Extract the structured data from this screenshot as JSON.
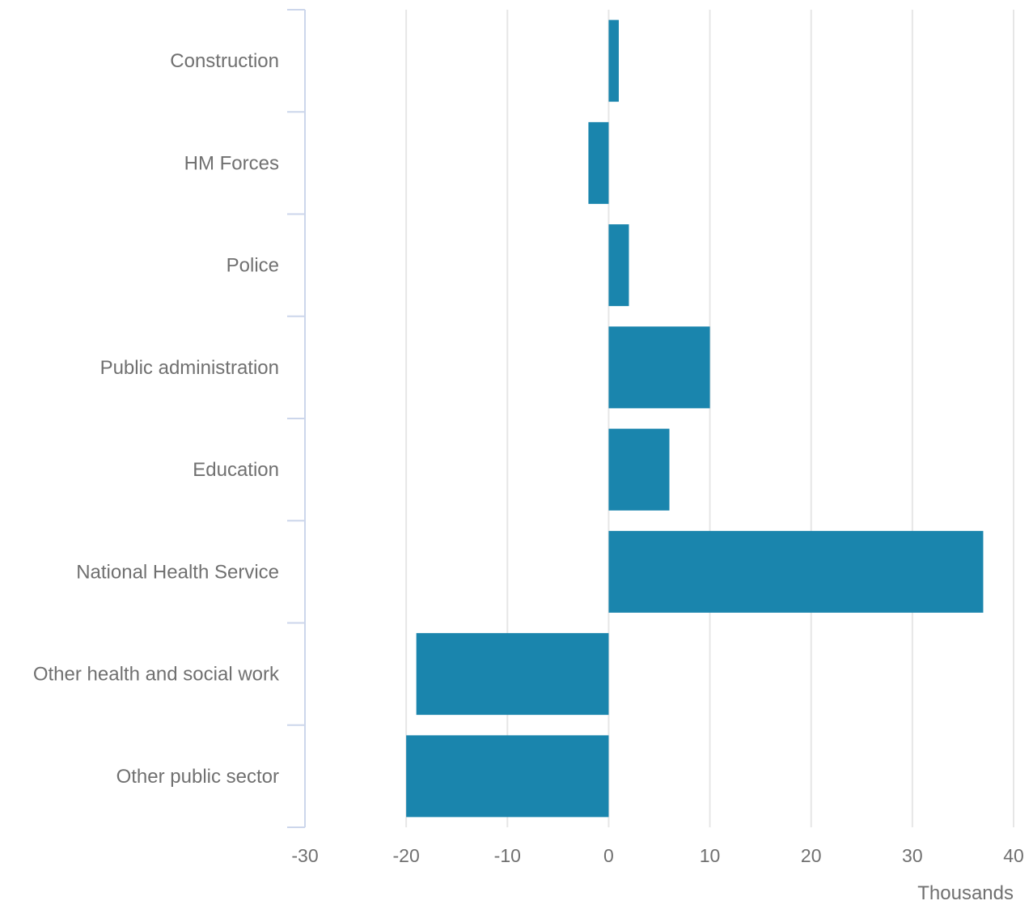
{
  "chart_data": {
    "type": "bar",
    "orientation": "horizontal",
    "categories": [
      "Construction",
      "HM Forces",
      "Police",
      "Public administration",
      "Education",
      "National Health Service",
      "Other health and social work",
      "Other public sector"
    ],
    "values": [
      1,
      -2,
      2,
      10,
      6,
      37,
      -19,
      -20
    ],
    "xlim": [
      -30,
      40
    ],
    "xticks": [
      -30,
      -20,
      -10,
      0,
      10,
      20,
      30,
      40
    ],
    "xunit": "Thousands",
    "grid": true,
    "bar_color": "#1a85ad"
  }
}
